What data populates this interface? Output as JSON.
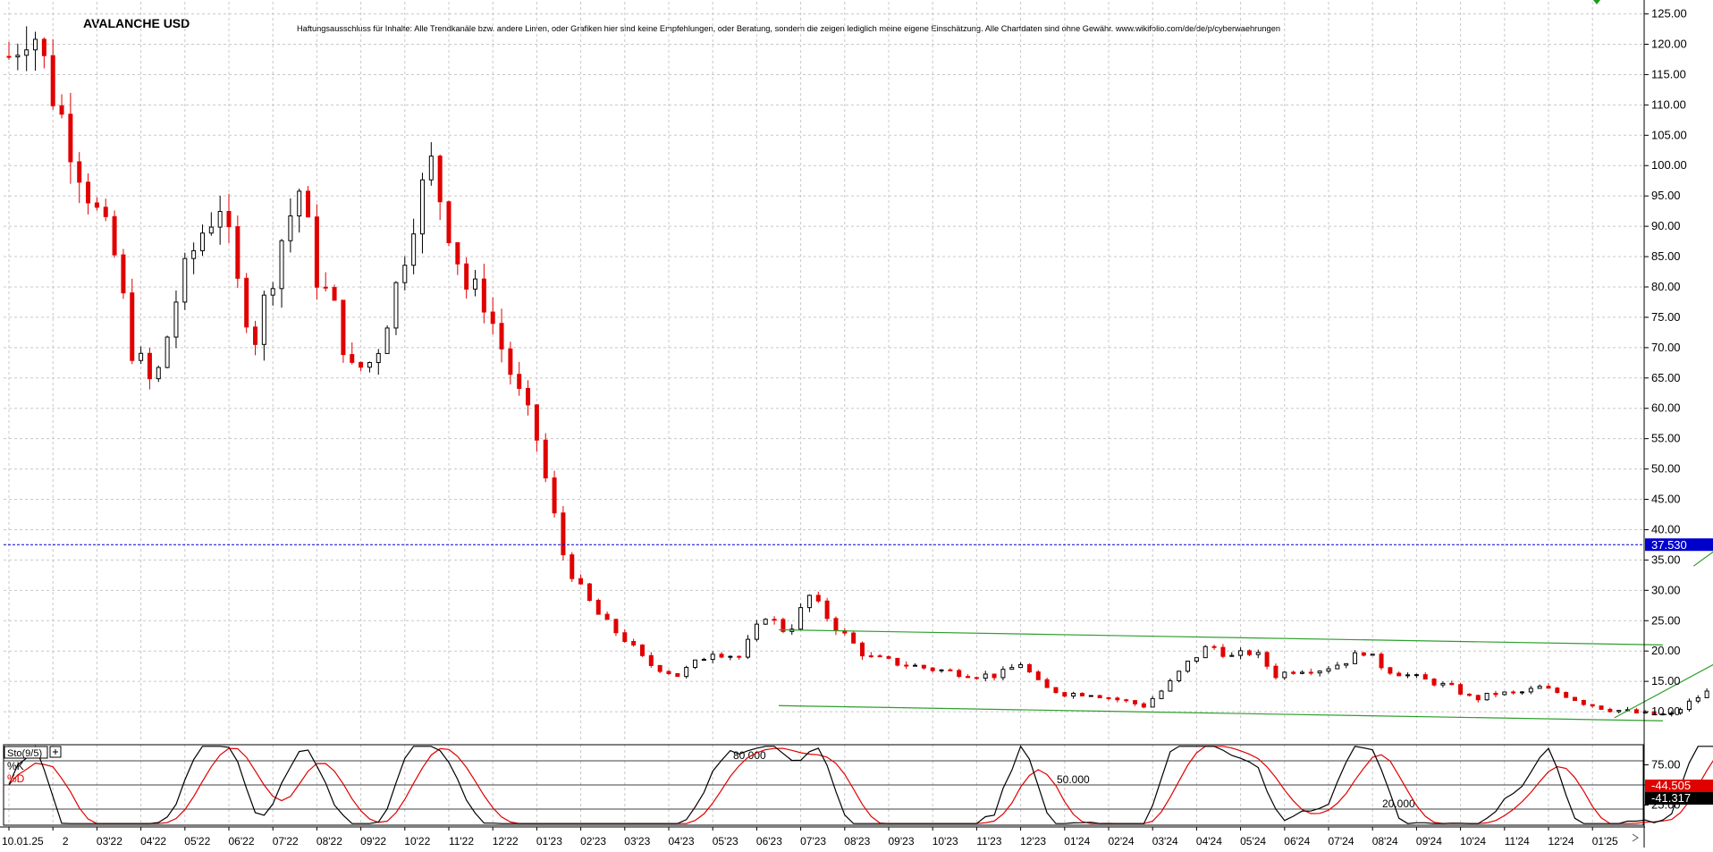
{
  "chart_data": [
    {
      "type": "candlestick",
      "title": "AVALANCHE USD",
      "disclaimer": "Haftungsausschluss für Inhalte: Alle Trendkanäle bzw. andere Linien, oder Grafiken hier sind keine Empfehlungen, oder Beratung, sondern die zeigen lediglich meine eigene Einschätzung. Alle Chartdaten sind ohne Gewähr. www.wikifolio.com/de/de/p/cyberwaehrungen",
      "ylim": [
        5,
        127
      ],
      "y_ticks": [
        "125.00",
        "120.00",
        "115.00",
        "110.00",
        "105.00",
        "100.00",
        "95.00",
        "90.00",
        "85.00",
        "80.00",
        "75.00",
        "70.00",
        "65.00",
        "60.00",
        "55.00",
        "50.00",
        "45.00",
        "40.00",
        "35.00",
        "30.00",
        "25.00",
        "20.00",
        "15.00",
        "10.00"
      ],
      "current_price": 37.53,
      "current_price_label": "37.530",
      "x_ticks": [
        "10.01.25",
        "2",
        "03'22",
        "04'22",
        "05'22",
        "06'22",
        "07'22",
        "08'22",
        "09'22",
        "10'22",
        "11'22",
        "12'22",
        "01'23",
        "02'23",
        "03'23",
        "04'23",
        "05'23",
        "06'23",
        "07'23",
        "08'23",
        "09'23",
        "10'23",
        "11'23",
        "12'23",
        "01'24",
        "02'24",
        "03'24",
        "04'24",
        "05'24",
        "06'24",
        "07'24",
        "08'24",
        "09'24",
        "10'24",
        "11'24",
        "12'24",
        "01'25"
      ],
      "anchors": [
        [
          0,
          118
        ],
        [
          0.5,
          124
        ],
        [
          1,
          112
        ],
        [
          1.5,
          102
        ],
        [
          2,
          92
        ],
        [
          2.4,
          85
        ],
        [
          2.8,
          70
        ],
        [
          3.3,
          63
        ],
        [
          3.8,
          78
        ],
        [
          4.3,
          88
        ],
        [
          4.8,
          94
        ],
        [
          5.2,
          80
        ],
        [
          5.6,
          72
        ],
        [
          6.2,
          88
        ],
        [
          6.6,
          96
        ],
        [
          7.0,
          82
        ],
        [
          7.4,
          76
        ],
        [
          7.8,
          66
        ],
        [
          8.3,
          68
        ],
        [
          8.8,
          80
        ],
        [
          9.2,
          92
        ],
        [
          9.6,
          100
        ],
        [
          10.0,
          90
        ],
        [
          10.4,
          80
        ],
        [
          10.8,
          78
        ],
        [
          11.2,
          70
        ],
        [
          11.6,
          62
        ],
        [
          12.0,
          55
        ],
        [
          12.3,
          45
        ],
        [
          12.6,
          36
        ],
        [
          13.0,
          30
        ],
        [
          13.5,
          25
        ],
        [
          14.0,
          22
        ],
        [
          14.5,
          18
        ],
        [
          15.2,
          16
        ],
        [
          16.0,
          20
        ],
        [
          16.6,
          19
        ],
        [
          17.2,
          26
        ],
        [
          17.7,
          23
        ],
        [
          18.2,
          29
        ],
        [
          18.8,
          24
        ],
        [
          19.5,
          19
        ],
        [
          20.2,
          18
        ],
        [
          21.0,
          17
        ],
        [
          22.0,
          16
        ],
        [
          22.5,
          16
        ],
        [
          23.0,
          18
        ],
        [
          23.5,
          14
        ],
        [
          24.0,
          13
        ],
        [
          24.6,
          13
        ],
        [
          25.2,
          12
        ],
        [
          25.8,
          11
        ],
        [
          26.3,
          14
        ],
        [
          26.8,
          18
        ],
        [
          27.3,
          21
        ],
        [
          27.8,
          19
        ],
        [
          28.3,
          20
        ],
        [
          28.8,
          16
        ],
        [
          29.3,
          17
        ],
        [
          29.8,
          17
        ],
        [
          30.3,
          18
        ],
        [
          30.8,
          20
        ],
        [
          31.3,
          17
        ],
        [
          31.8,
          16
        ],
        [
          32.3,
          15
        ],
        [
          32.8,
          14
        ],
        [
          33.3,
          12
        ],
        [
          33.8,
          13
        ],
        [
          34.3,
          13
        ],
        [
          34.8,
          14
        ],
        [
          35.3,
          13
        ],
        [
          35.8,
          11.5
        ],
        [
          36.3,
          10.5
        ],
        [
          36.8,
          10
        ],
        [
          37.3,
          9.5
        ],
        [
          37.8,
          9.5
        ],
        [
          38.3,
          12
        ],
        [
          38.8,
          14
        ],
        [
          39.0,
          18
        ],
        [
          39.4,
          20
        ],
        [
          39.8,
          22
        ],
        [
          40.1,
          28
        ],
        [
          40.4,
          36
        ],
        [
          40.8,
          44
        ],
        [
          41.2,
          36
        ],
        [
          41.7,
          30
        ],
        [
          42.2,
          34
        ],
        [
          42.7,
          36
        ],
        [
          43.2,
          42
        ],
        [
          43.6,
          38
        ],
        [
          44.1,
          42
        ],
        [
          44.5,
          60
        ],
        [
          44.8,
          56
        ],
        [
          45.1,
          46
        ],
        [
          45.5,
          40
        ],
        [
          45.9,
          36
        ],
        [
          46.4,
          34
        ],
        [
          46.9,
          38
        ],
        [
          47.4,
          36
        ],
        [
          47.9,
          34
        ],
        [
          48.4,
          40
        ],
        [
          48.9,
          34
        ],
        [
          49.4,
          30
        ],
        [
          49.9,
          27
        ],
        [
          50.4,
          26
        ],
        [
          50.9,
          25
        ],
        [
          51.4,
          32
        ],
        [
          51.9,
          28
        ],
        [
          52.4,
          21
        ],
        [
          52.9,
          19
        ],
        [
          53.4,
          21
        ],
        [
          53.9,
          24
        ],
        [
          54.4,
          22
        ],
        [
          54.9,
          24
        ],
        [
          55.4,
          25
        ],
        [
          55.9,
          29
        ],
        [
          56.4,
          27
        ],
        [
          56.9,
          28
        ],
        [
          57.4,
          26
        ],
        [
          57.9,
          27
        ],
        [
          58.4,
          25
        ],
        [
          58.9,
          30
        ],
        [
          59.4,
          36
        ],
        [
          59.8,
          44
        ],
        [
          60.2,
          52
        ],
        [
          60.6,
          46
        ],
        [
          60.9,
          40
        ],
        [
          61.3,
          37.5
        ]
      ],
      "annotations": [
        {
          "label": "upper-channel-line",
          "from": [
            38.3,
            34
          ],
          "to": [
            44.7,
            68
          ]
        },
        {
          "label": "lower-channel-line",
          "from": [
            36.5,
            9
          ],
          "to": [
            44.7,
            41
          ]
        },
        {
          "label": "triangle-top-line",
          "from": [
            17.5,
            23.5
          ],
          "to": [
            37.6,
            21
          ]
        },
        {
          "label": "triangle-bottom-line",
          "from": [
            17.5,
            11
          ],
          "to": [
            37.6,
            8.5
          ]
        }
      ]
    },
    {
      "type": "line",
      "indicator": "Sto(9/5)",
      "series": [
        {
          "name": "%K",
          "color": "#000000"
        },
        {
          "name": "%D",
          "color": "#e00000"
        }
      ],
      "ylim": [
        0,
        100
      ],
      "y_ticks": [
        "75.00",
        "50.00",
        "25.00"
      ],
      "levels": [
        {
          "value": 80,
          "label": "80.000"
        },
        {
          "value": 50,
          "label": "50.000"
        },
        {
          "value": 20,
          "label": "20.000"
        }
      ],
      "k_value": -44.505,
      "k_value_label": "-44.505",
      "d_value": -41.317,
      "d_value_label": "-41.317"
    }
  ],
  "colors": {
    "up": "#000000",
    "down": "#e00000",
    "channel": "#2e9e2e",
    "current_line": "#0000cc",
    "current_bg": "#0000cc",
    "k_bg": "#e00000",
    "d_bg": "#000000"
  }
}
